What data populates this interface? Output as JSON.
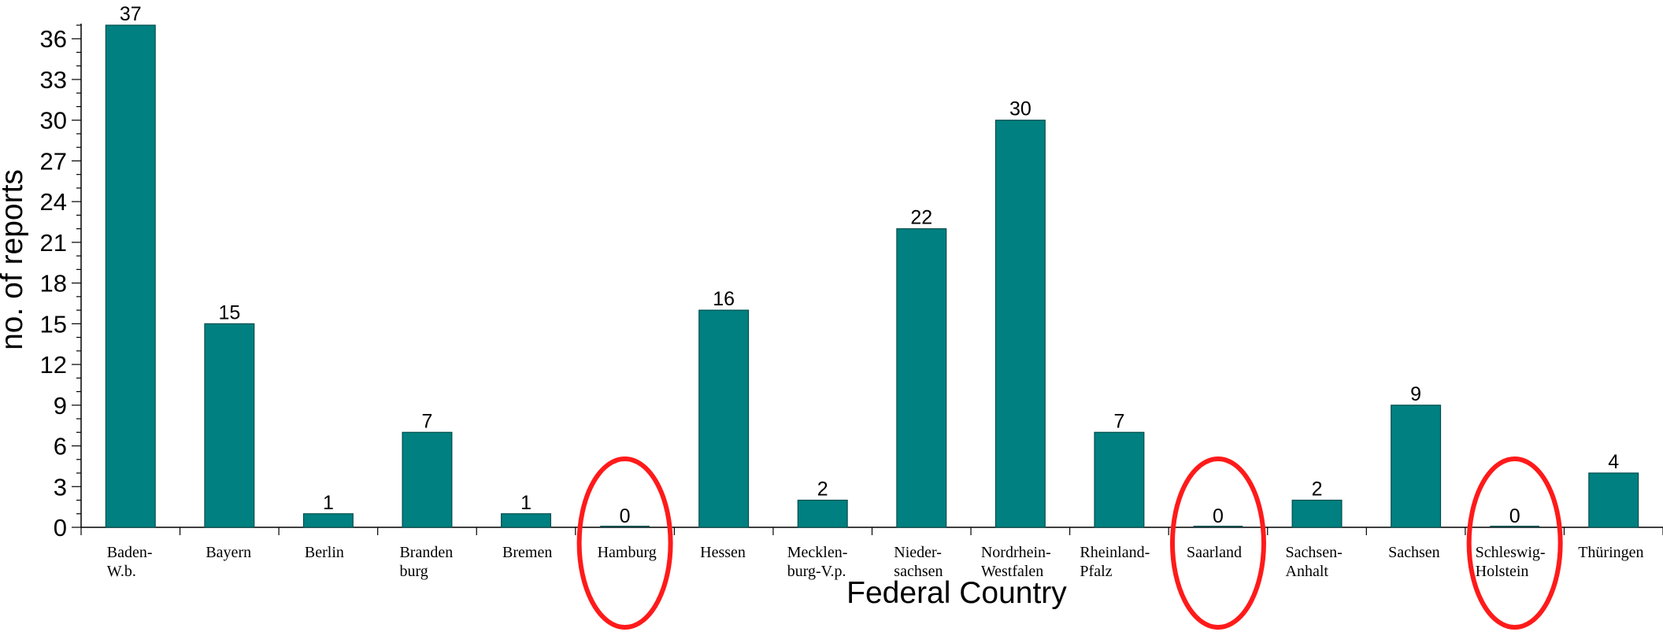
{
  "colors": {
    "bar": "#008080",
    "bar_edge": "#004d4d",
    "highlight": "#ff1a1a",
    "axis": "#000000"
  },
  "chart_data": {
    "type": "bar",
    "title": "",
    "xlabel": "Federal Country",
    "ylabel": "no. of reports",
    "ylim": [
      0,
      37
    ],
    "yticks": [
      0,
      3,
      6,
      9,
      12,
      15,
      18,
      21,
      24,
      27,
      30,
      33,
      36
    ],
    "grid": false,
    "categories": [
      [
        "Baden-",
        "W.b."
      ],
      [
        "Bayern"
      ],
      [
        "Berlin"
      ],
      [
        "Branden",
        "burg"
      ],
      [
        "Bremen"
      ],
      [
        "Hamburg"
      ],
      [
        "Hessen"
      ],
      [
        "Mecklen-",
        "burg-V.p."
      ],
      [
        "Nieder-",
        "sachsen"
      ],
      [
        "Nordrhein-",
        "Westfalen"
      ],
      [
        "Rheinland-",
        "Pfalz"
      ],
      [
        "Saarland"
      ],
      [
        "Sachsen-",
        "Anhalt"
      ],
      [
        "Sachsen"
      ],
      [
        "Schleswig-",
        "Holstein"
      ],
      [
        "Thüringen"
      ]
    ],
    "values": [
      37,
      15,
      1,
      7,
      1,
      0,
      16,
      2,
      22,
      30,
      7,
      0,
      2,
      9,
      0,
      4
    ],
    "circled": [
      "Hamburg",
      "Saarland",
      "Schleswig-Holstein"
    ]
  }
}
